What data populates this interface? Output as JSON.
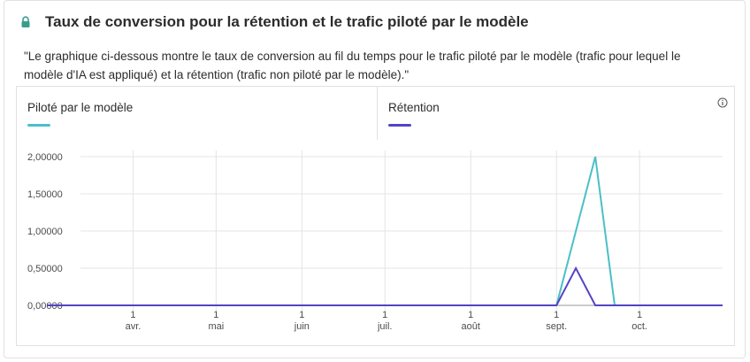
{
  "header": {
    "title": "Taux de conversion pour la rétention et le trafic piloté par le modèle",
    "icon": "lock-icon"
  },
  "description": "\"Le graphique ci-dessous montre le taux de conversion au fil du temps pour le trafic piloté par le modèle (trafic pour lequel le modèle d'IA est appliqué) et la rétention (trafic non piloté par le modèle).\"",
  "legend": {
    "items": [
      {
        "label": "Piloté par le modèle",
        "color": "#4bbfc7"
      },
      {
        "label": "Rétention",
        "color": "#5344c4"
      }
    ],
    "info_icon": "info-icon"
  },
  "chart_data": {
    "type": "line",
    "x": [
      "2023-03-01",
      "2023-09-01",
      "2023-09-08",
      "2023-09-15",
      "2023-09-22",
      "2023-10-31"
    ],
    "x_tick_labels": [
      {
        "day": "1",
        "month": "avr."
      },
      {
        "day": "1",
        "month": "mai"
      },
      {
        "day": "1",
        "month": "juin"
      },
      {
        "day": "1",
        "month": "juil."
      },
      {
        "day": "1",
        "month": "août"
      },
      {
        "day": "1",
        "month": "sept."
      },
      {
        "day": "1",
        "month": "oct."
      }
    ],
    "y_tick_labels": [
      "0,00000",
      "0,50000",
      "1,00000",
      "1,50000",
      "2,00000"
    ],
    "ylim": [
      0,
      2
    ],
    "grid": true,
    "series": [
      {
        "name": "Piloté par le modèle",
        "color": "#4bbfc7",
        "points": [
          {
            "x": "2023-03-01",
            "y": 0
          },
          {
            "x": "2023-09-01",
            "y": 0
          },
          {
            "x": "2023-09-15",
            "y": 2.0
          },
          {
            "x": "2023-09-22",
            "y": 0
          },
          {
            "x": "2023-10-31",
            "y": 0
          }
        ]
      },
      {
        "name": "Rétention",
        "color": "#5344c4",
        "points": [
          {
            "x": "2023-03-01",
            "y": 0
          },
          {
            "x": "2023-09-01",
            "y": 0
          },
          {
            "x": "2023-09-08",
            "y": 0.5
          },
          {
            "x": "2023-09-15",
            "y": 0
          },
          {
            "x": "2023-10-31",
            "y": 0
          }
        ]
      }
    ]
  }
}
